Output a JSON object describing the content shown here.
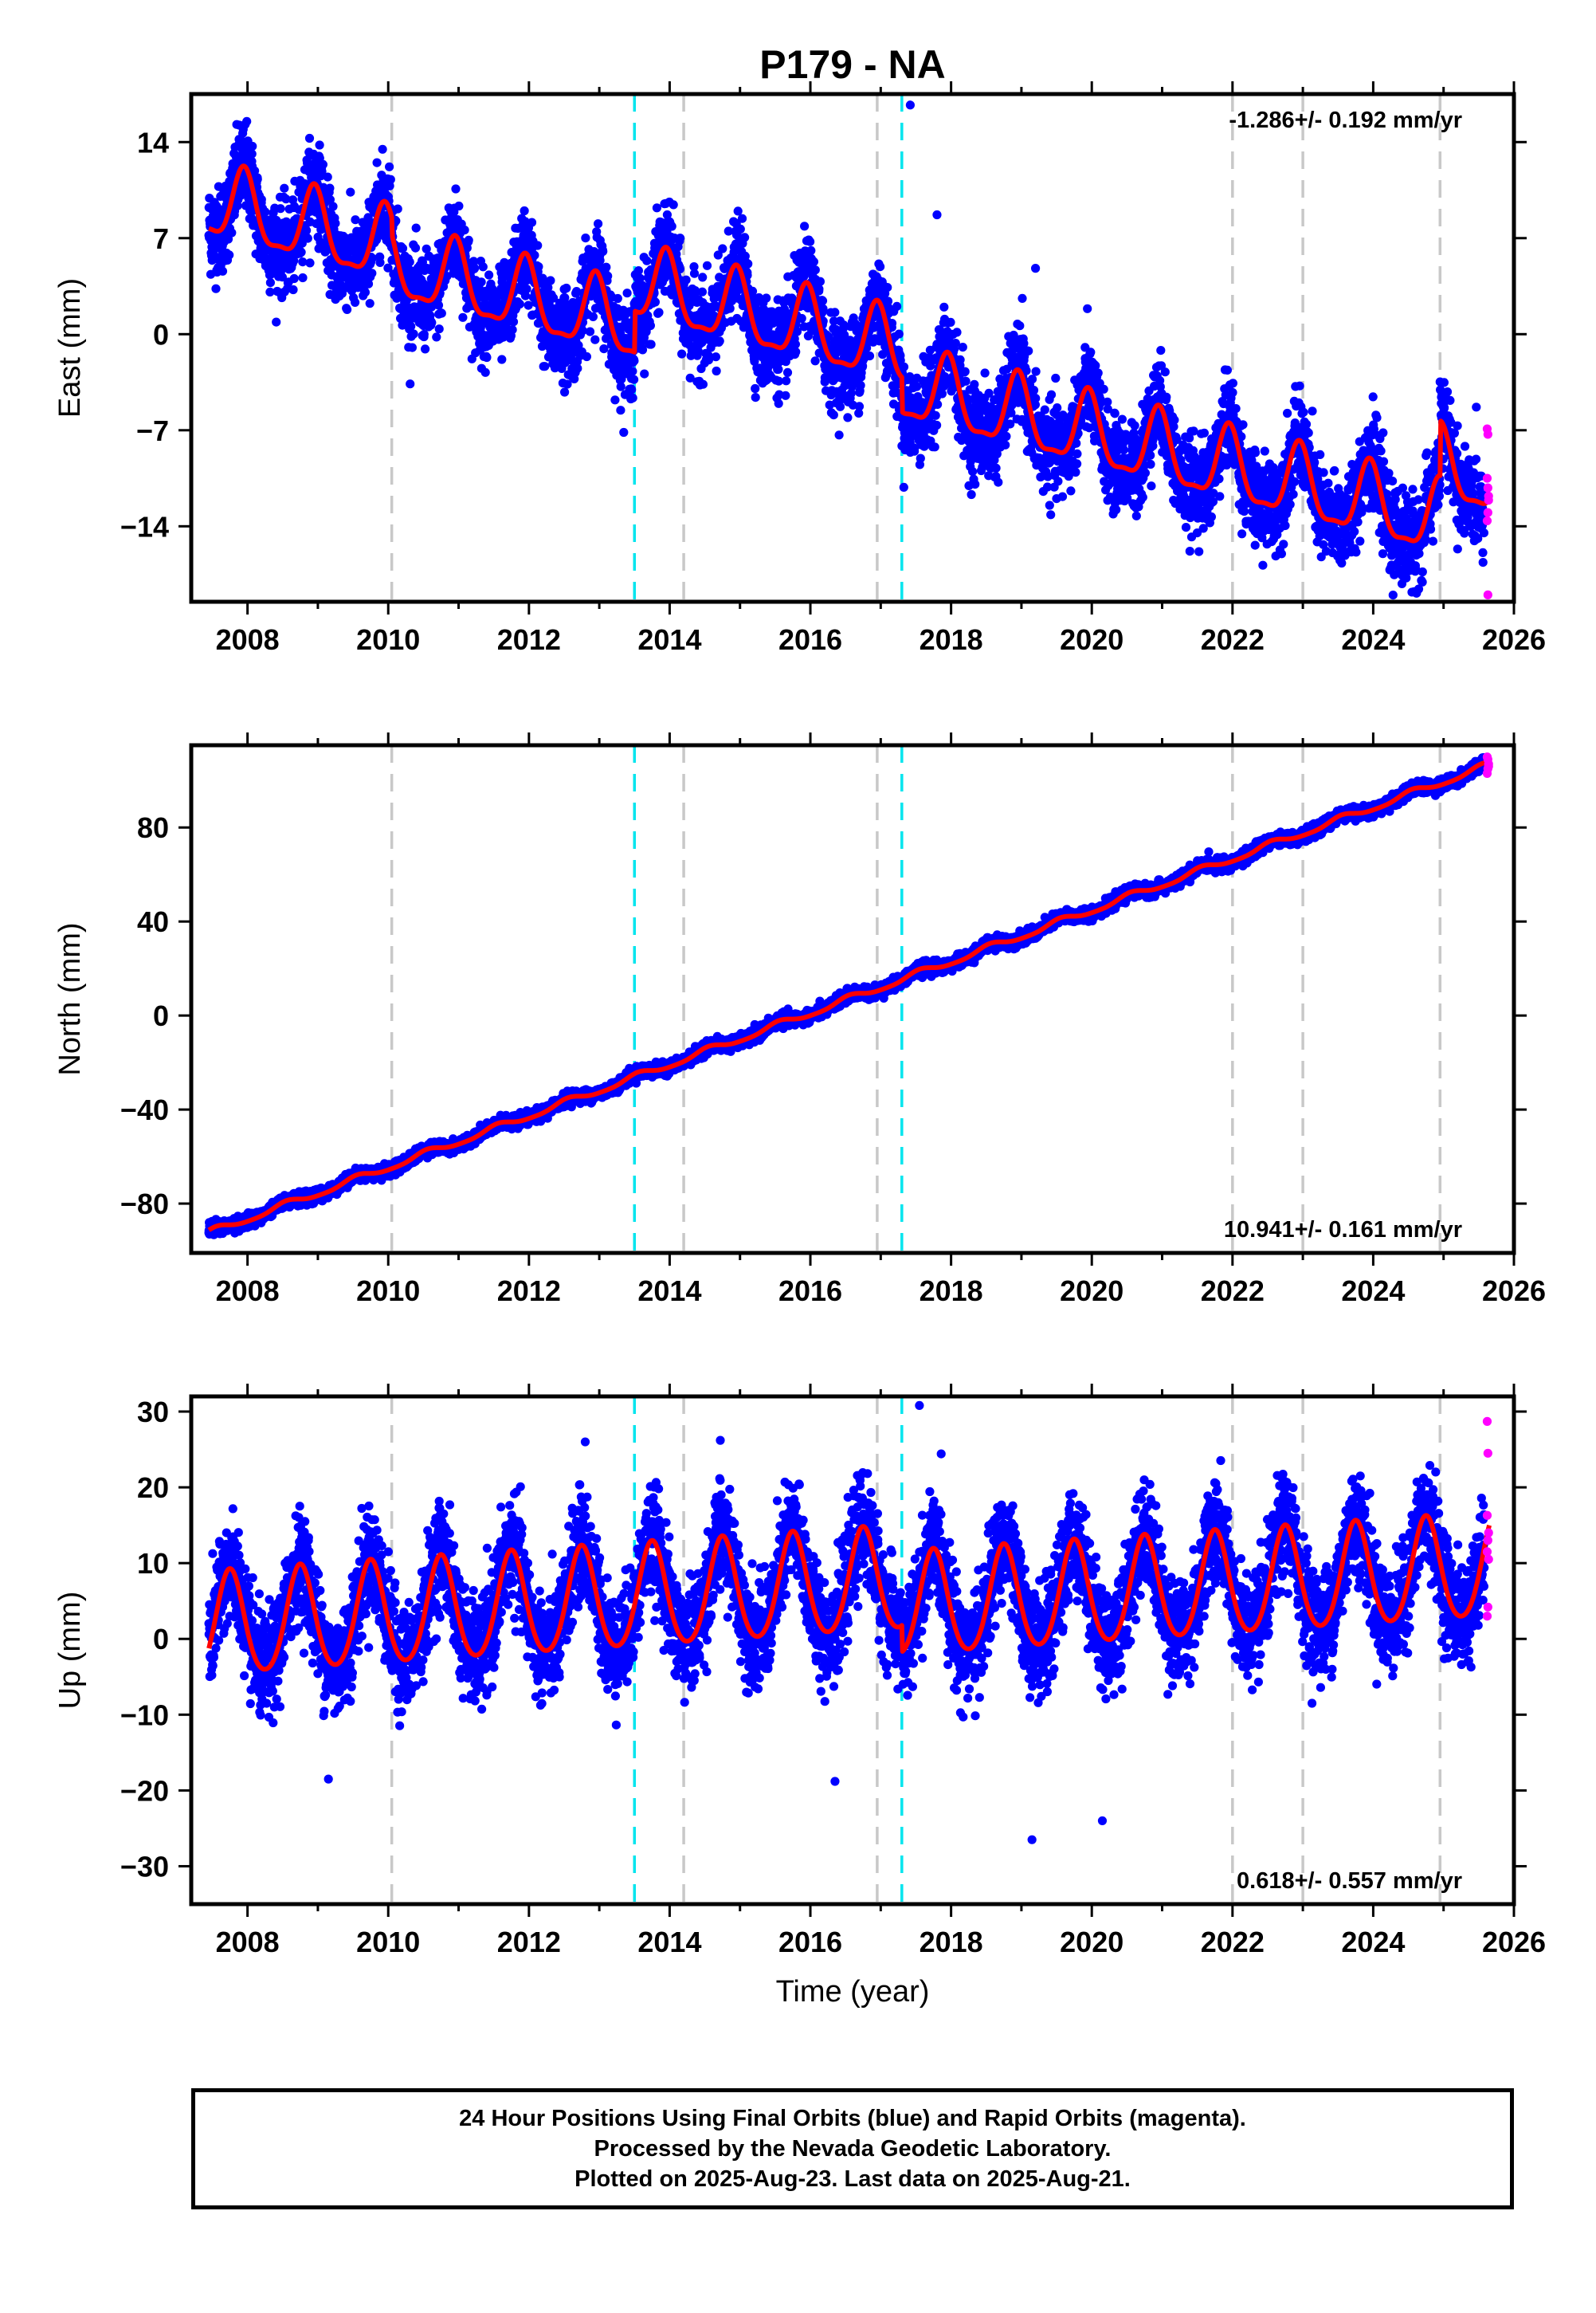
{
  "title": "P179 - NA",
  "colors": {
    "final_orbits": "#0000ff",
    "rapid_orbits": "#ff00ff",
    "model_fit": "#ff0000",
    "equipment_change": "#c8c8c8",
    "earthquake": "#00e5ee",
    "frame": "#000000"
  },
  "footer": {
    "line1": "24 Hour Positions Using Final Orbits (blue) and Rapid Orbits (magenta).",
    "line2": "Processed by the Nevada Geodetic Laboratory.",
    "line3": "Plotted on 2025-Aug-23. Last data on 2025-Aug-21."
  },
  "chart_data": [
    {
      "type": "scatter",
      "component": "east",
      "ylabel": "East (mm)",
      "xlim": [
        2007.2,
        2026
      ],
      "ylim": [
        -19.5,
        17.5
      ],
      "xticks": [
        2008,
        2010,
        2012,
        2014,
        2016,
        2018,
        2020,
        2022,
        2024,
        2026
      ],
      "yticks": [
        -14,
        -7,
        0,
        7,
        14
      ],
      "rate_label": "-1.286+/- 0.192 mm/yr",
      "rate_position": "top-right",
      "vertical_lines": {
        "equipment_change": [
          2010.05,
          2014.2,
          2016.95,
          2022.0,
          2023.0,
          2024.95
        ],
        "earthquake": [
          2013.5,
          2017.3
        ]
      },
      "model": {
        "start": 2007.45,
        "end": 2025.65,
        "offset": 9.5,
        "rate": -1.286,
        "amplitude": 2.6,
        "phase_peak": 0.95,
        "semiannual": 0.8,
        "steps": [
          {
            "epoch": 2010.05,
            "size": -1.2
          },
          {
            "epoch": 2013.5,
            "size": 3.0
          },
          {
            "epoch": 2017.3,
            "size": -2.5
          },
          {
            "epoch": 2024.95,
            "size": 4.0
          }
        ]
      },
      "scatter_sigma": 1.6,
      "outliers": [
        {
          "x": 2017.42,
          "y": 16.7,
          "series": "final"
        },
        {
          "x": 2017.8,
          "y": 8.7,
          "series": "final"
        },
        {
          "x": 2019.2,
          "y": 4.8,
          "series": "final"
        },
        {
          "x": 2024.55,
          "y": -18.8,
          "series": "final"
        }
      ],
      "rapid": [
        [
          2025.62,
          -6.9
        ],
        [
          2025.63,
          -7.3
        ],
        [
          2025.62,
          -10.5
        ],
        [
          2025.63,
          -11.2
        ],
        [
          2025.64,
          -12.1
        ],
        [
          2025.63,
          -13.0
        ],
        [
          2025.62,
          -13.6
        ],
        [
          2025.64,
          -11.8
        ],
        [
          2025.63,
          -19.0
        ]
      ],
      "series": [
        {
          "name": "Final Orbits (blue)",
          "role": "final"
        },
        {
          "name": "Rapid Orbits (magenta)",
          "role": "rapid"
        }
      ]
    },
    {
      "type": "scatter",
      "component": "north",
      "ylabel": "North (mm)",
      "xlim": [
        2007.2,
        2026
      ],
      "ylim": [
        -101,
        115
      ],
      "xticks": [
        2008,
        2010,
        2012,
        2014,
        2016,
        2018,
        2020,
        2022,
        2024,
        2026
      ],
      "yticks": [
        -80,
        -40,
        0,
        40,
        80
      ],
      "rate_label": "10.941+/- 0.161 mm/yr",
      "rate_position": "bottom-right",
      "vertical_lines": {
        "equipment_change": [
          2010.05,
          2014.2,
          2016.95,
          2022.0,
          2023.0,
          2024.95
        ],
        "earthquake": [
          2013.5,
          2017.3
        ]
      },
      "model": {
        "start": 2007.45,
        "end": 2025.65,
        "offset": -92.5,
        "rate": 10.941,
        "amplitude": 1.4,
        "phase_peak": 0.55,
        "semiannual": 0.3,
        "steps": []
      },
      "scatter_sigma": 1.3,
      "outliers": [],
      "rapid": [
        [
          2025.62,
          103
        ],
        [
          2025.63,
          105
        ],
        [
          2025.64,
          107
        ],
        [
          2025.63,
          109
        ],
        [
          2025.62,
          110
        ],
        [
          2025.64,
          106
        ]
      ],
      "series": [
        {
          "name": "Final Orbits (blue)",
          "role": "final"
        },
        {
          "name": "Rapid Orbits (magenta)",
          "role": "rapid"
        }
      ]
    },
    {
      "type": "scatter",
      "component": "up",
      "ylabel": "Up (mm)",
      "xlim": [
        2007.2,
        2026
      ],
      "ylim": [
        -35,
        32
      ],
      "xticks": [
        2008,
        2010,
        2012,
        2014,
        2016,
        2018,
        2020,
        2022,
        2024,
        2026
      ],
      "yticks": [
        -30,
        -20,
        -10,
        0,
        10,
        20,
        30
      ],
      "xlabel": "Time (year)",
      "rate_label": "0.618+/- 0.557 mm/yr",
      "rate_position": "bottom-right",
      "vertical_lines": {
        "equipment_change": [
          2010.05,
          2014.2,
          2016.95,
          2022.0,
          2023.0,
          2024.95
        ],
        "earthquake": [
          2013.5,
          2017.3
        ]
      },
      "model": {
        "start": 2007.45,
        "end": 2025.65,
        "offset": 1.5,
        "rate": 0.618,
        "amplitude": 6.8,
        "phase_peak": 0.75,
        "semiannual": 0.8,
        "steps": [
          {
            "epoch": 2017.3,
            "size": -3.5
          }
        ]
      },
      "scatter_sigma": 3.4,
      "outliers": [
        {
          "x": 2012.8,
          "y": 26.0,
          "series": "final"
        },
        {
          "x": 2014.72,
          "y": 26.2,
          "series": "final"
        },
        {
          "x": 2017.55,
          "y": 30.8,
          "series": "final"
        },
        {
          "x": 2019.15,
          "y": -26.5,
          "series": "final"
        },
        {
          "x": 2020.15,
          "y": -24.0,
          "series": "final"
        },
        {
          "x": 2016.35,
          "y": -18.8,
          "series": "final"
        },
        {
          "x": 2009.15,
          "y": -18.5,
          "series": "final"
        }
      ],
      "rapid": [
        [
          2025.62,
          28.7
        ],
        [
          2025.63,
          24.5
        ],
        [
          2025.62,
          16.3
        ],
        [
          2025.64,
          14.0
        ],
        [
          2025.63,
          13.0
        ],
        [
          2025.62,
          11.5
        ],
        [
          2025.64,
          10.5
        ],
        [
          2025.63,
          4.2
        ],
        [
          2025.62,
          3.0
        ]
      ],
      "series": [
        {
          "name": "Final Orbits (blue)",
          "role": "final"
        },
        {
          "name": "Rapid Orbits (magenta)",
          "role": "rapid"
        }
      ]
    }
  ]
}
